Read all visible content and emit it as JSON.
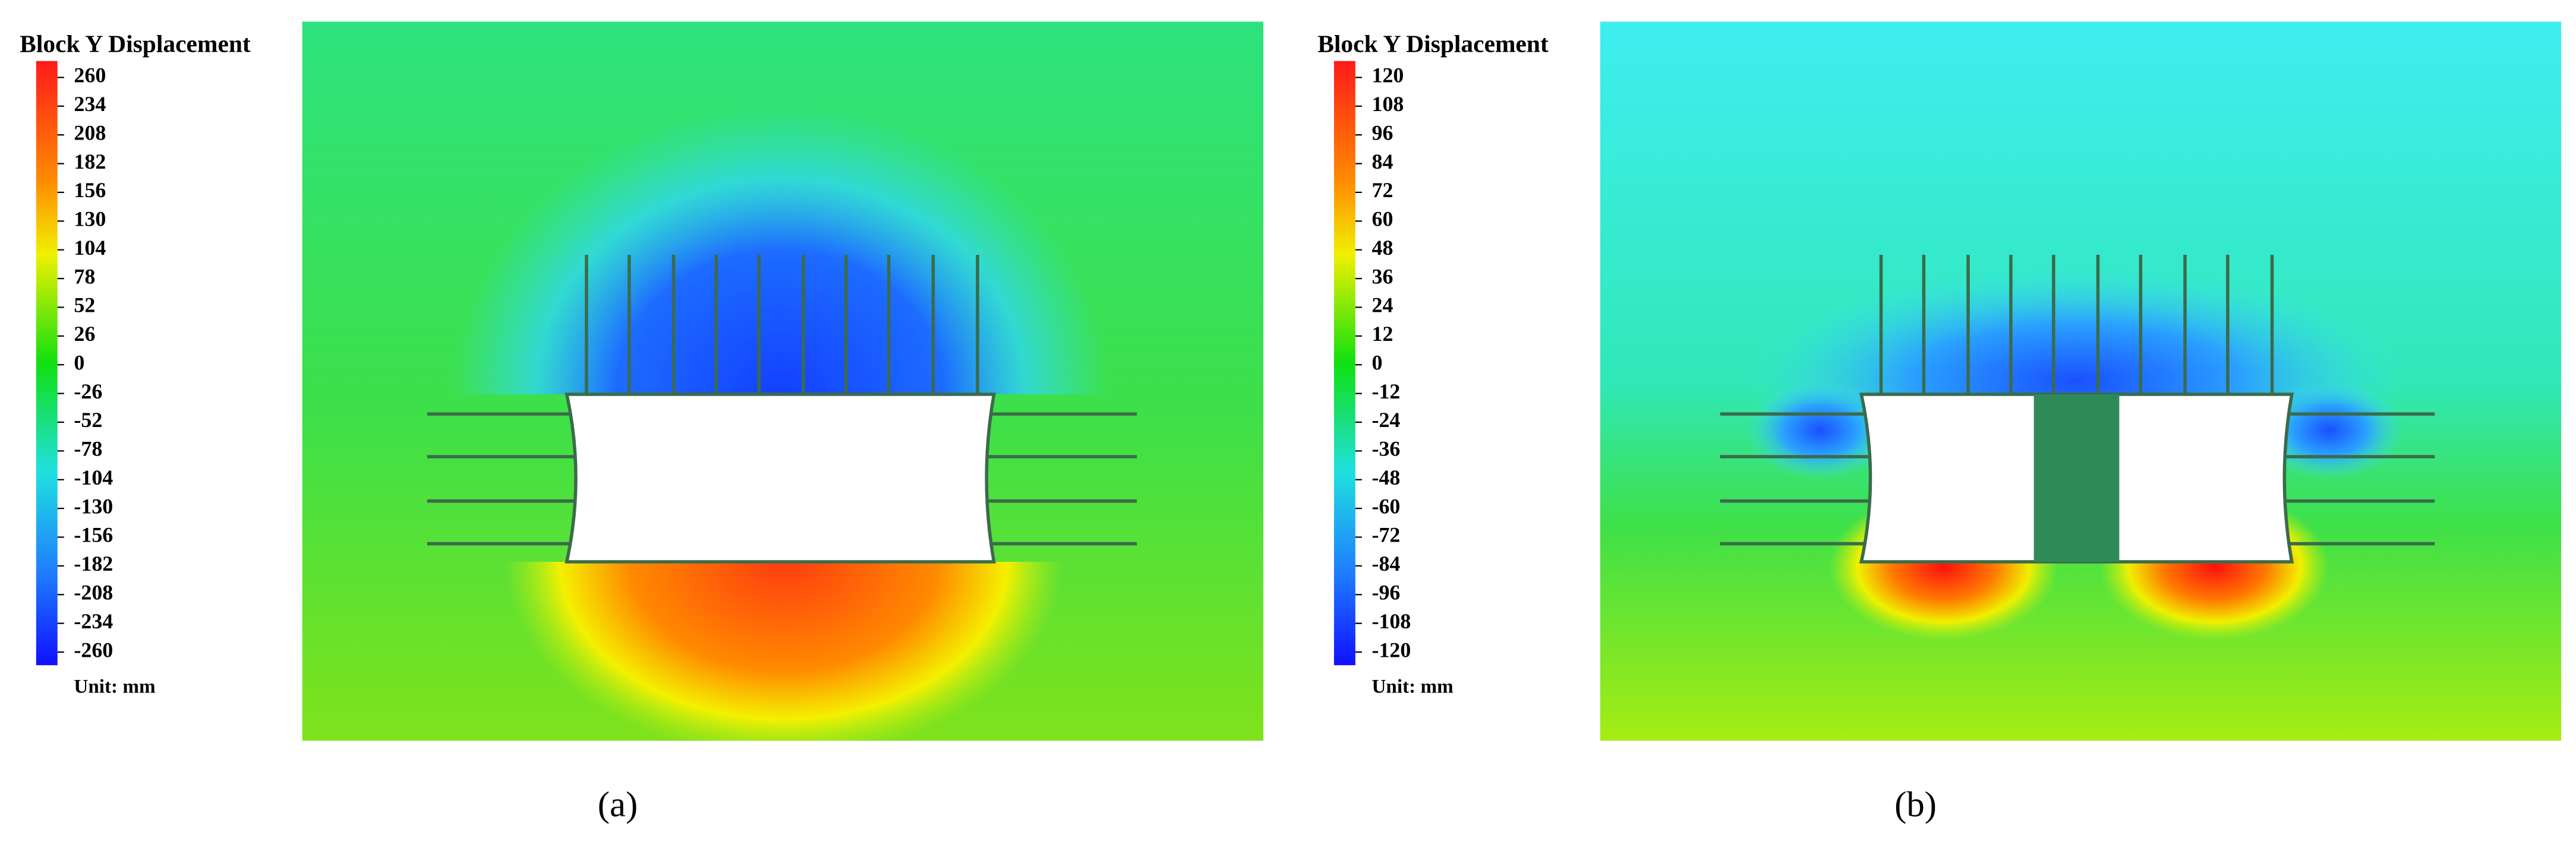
{
  "chart_data": [
    {
      "type": "contour",
      "colorbar_title": "Block Y Displacement",
      "colorbar_lim": [
        -260,
        260
      ],
      "colorbar_ticks": [
        260,
        234,
        208,
        182,
        156,
        130,
        104,
        78,
        52,
        26,
        0,
        -26,
        -52,
        -78,
        -104,
        -130,
        -156,
        -182,
        -208,
        -234,
        -260
      ],
      "unit_label": "Unit: mm",
      "caption": "(a)"
    },
    {
      "type": "contour",
      "colorbar_title": "Block Y Displacement",
      "colorbar_lim": [
        -120,
        120
      ],
      "colorbar_ticks": [
        120,
        108,
        96,
        84,
        72,
        60,
        48,
        36,
        24,
        12,
        0,
        -12,
        -24,
        -36,
        -48,
        -60,
        -72,
        -84,
        -96,
        -108,
        -120
      ],
      "unit_label": "Unit: mm",
      "caption": "(b)"
    }
  ]
}
